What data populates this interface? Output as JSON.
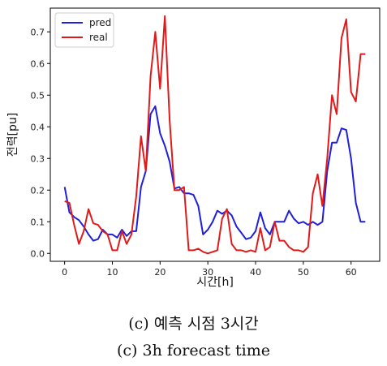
{
  "chart_data": {
    "type": "line",
    "title": "",
    "xlabel": "시간[h]",
    "ylabel": "전력[pu]",
    "xlim": [
      -3,
      66
    ],
    "ylim": [
      -0.025,
      0.775
    ],
    "xticks": [
      0,
      10,
      20,
      30,
      40,
      50,
      60
    ],
    "yticks": [
      0.0,
      0.1,
      0.2,
      0.3,
      0.4,
      0.5,
      0.6,
      0.7
    ],
    "grid": false,
    "legend_position": "top-left",
    "series": [
      {
        "name": "pred",
        "color": "#1f1fdc",
        "x": [
          0,
          1,
          2,
          3,
          4,
          5,
          6,
          7,
          8,
          9,
          10,
          11,
          12,
          13,
          14,
          15,
          16,
          17,
          18,
          19,
          20,
          21,
          22,
          23,
          24,
          25,
          26,
          27,
          28,
          29,
          30,
          31,
          32,
          33,
          34,
          35,
          36,
          37,
          38,
          39,
          40,
          41,
          42,
          43,
          44,
          45,
          46,
          47,
          48,
          49,
          50,
          51,
          52,
          53,
          54,
          55,
          56,
          57,
          58,
          59,
          60,
          61,
          62,
          63
        ],
        "values": [
          0.21,
          0.13,
          0.115,
          0.105,
          0.085,
          0.06,
          0.04,
          0.045,
          0.075,
          0.06,
          0.06,
          0.05,
          0.075,
          0.055,
          0.07,
          0.07,
          0.21,
          0.26,
          0.44,
          0.465,
          0.38,
          0.34,
          0.29,
          0.205,
          0.21,
          0.19,
          0.19,
          0.185,
          0.15,
          0.06,
          0.075,
          0.1,
          0.135,
          0.125,
          0.135,
          0.12,
          0.085,
          0.065,
          0.045,
          0.05,
          0.07,
          0.13,
          0.08,
          0.06,
          0.1,
          0.1,
          0.1,
          0.135,
          0.11,
          0.095,
          0.1,
          0.09,
          0.1,
          0.09,
          0.1,
          0.26,
          0.35,
          0.35,
          0.395,
          0.39,
          0.3,
          0.16,
          0.1,
          0.1
        ]
      },
      {
        "name": "real",
        "color": "#e01a1a",
        "x": [
          0,
          1,
          2,
          3,
          4,
          5,
          6,
          7,
          8,
          9,
          10,
          11,
          12,
          13,
          14,
          15,
          16,
          17,
          18,
          19,
          20,
          21,
          22,
          23,
          24,
          25,
          26,
          27,
          28,
          29,
          30,
          31,
          32,
          33,
          34,
          35,
          36,
          37,
          38,
          39,
          40,
          41,
          42,
          43,
          44,
          45,
          46,
          47,
          48,
          49,
          50,
          51,
          52,
          53,
          54,
          55,
          56,
          57,
          58,
          59,
          60,
          61,
          62,
          63
        ],
        "values": [
          0.165,
          0.16,
          0.09,
          0.03,
          0.07,
          0.14,
          0.095,
          0.09,
          0.07,
          0.06,
          0.01,
          0.01,
          0.07,
          0.03,
          0.06,
          0.18,
          0.37,
          0.26,
          0.56,
          0.7,
          0.52,
          0.75,
          0.42,
          0.2,
          0.2,
          0.21,
          0.01,
          0.01,
          0.015,
          0.005,
          0.0,
          0.005,
          0.01,
          0.11,
          0.14,
          0.03,
          0.01,
          0.01,
          0.005,
          0.01,
          0.005,
          0.08,
          0.01,
          0.02,
          0.1,
          0.04,
          0.04,
          0.02,
          0.01,
          0.01,
          0.005,
          0.02,
          0.19,
          0.25,
          0.15,
          0.3,
          0.5,
          0.44,
          0.68,
          0.74,
          0.51,
          0.48,
          0.63,
          0.63
        ]
      }
    ]
  },
  "captions": {
    "korean": "(c)  예측  시점  3시간",
    "english": "(c)  3h  forecast  time"
  }
}
